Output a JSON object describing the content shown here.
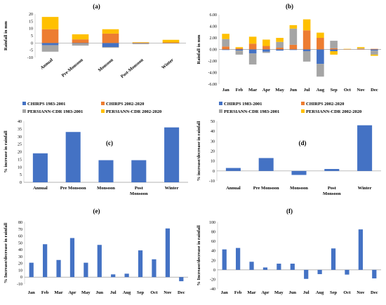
{
  "colors": {
    "chirps_1983": "#4472c4",
    "chirps_2002": "#ed7d31",
    "persiann_1983": "#a5a5a5",
    "persiann_2002": "#ffc000",
    "bar": "#4472c4"
  },
  "legend_labels": [
    "CHIRPS 1983-2001",
    "CHIRPS 2002-2020",
    "PERSIANN-CDR 1983-2001",
    "PERSIANN-CDR 2002-2020"
  ],
  "chart_data": [
    {
      "id": "a",
      "type": "bar",
      "stacked": true,
      "title": "(a)",
      "ylabel": "Rainfall in mm",
      "ylim": [
        -10,
        20
      ],
      "yticks": [
        -10,
        -5,
        0,
        5,
        10,
        15,
        20
      ],
      "categories": [
        "Annual",
        "Pre-Monsoon",
        "Monsoon",
        "Post-Monsoon",
        "Winter"
      ],
      "series": [
        {
          "name": "CHIRPS 1983-2001",
          "values": [
            -1.5,
            -0.3,
            -2.8,
            -0.2,
            -0.1
          ]
        },
        {
          "name": "CHIRPS 2002-2020",
          "values": [
            9.5,
            2.5,
            6.5,
            0.3,
            0.4
          ]
        },
        {
          "name": "PERSIANN-CDR 1983-2001",
          "values": [
            -4.5,
            -1.5,
            -0.5,
            -0.6,
            -0.3
          ]
        },
        {
          "name": "PERSIANN-CDR 2002-2020",
          "values": [
            8.5,
            3.5,
            3.0,
            0.3,
            1.8
          ]
        }
      ]
    },
    {
      "id": "b",
      "type": "bar",
      "stacked": true,
      "title": "(b)",
      "ylabel": "Rainfall in mm",
      "ylim": [
        -6,
        6
      ],
      "yticks": [
        -6,
        -4,
        -2,
        0,
        2,
        4,
        6
      ],
      "ytick_labels": [
        "-6.00",
        "-4.00",
        "-2.00",
        "0.00",
        "2.00",
        "4.00",
        "6.00"
      ],
      "categories": [
        "Jan",
        "Feb",
        "Mar",
        "Apr",
        "May",
        "Jun",
        "Jul",
        "Aug",
        "Sep",
        "Oct",
        "Nov",
        "Dec"
      ],
      "series": [
        {
          "name": "CHIRPS 1983-2001",
          "values": [
            -0.1,
            -0.2,
            -0.7,
            -0.4,
            -0.2,
            -0.1,
            -0.3,
            -2.5,
            -0.3,
            0.0,
            0.0,
            -0.2
          ]
        },
        {
          "name": "CHIRPS 2002-2020",
          "values": [
            0.5,
            0.2,
            1.0,
            0.6,
            0.3,
            0.8,
            3.3,
            2.0,
            0.2,
            0.05,
            0.1,
            0.1
          ]
        },
        {
          "name": "PERSIANN-CDR 1983-2001",
          "values": [
            1.3,
            -0.7,
            -1.9,
            -0.2,
            1.0,
            2.8,
            -1.8,
            -2.2,
            1.3,
            0.0,
            0.1,
            -0.7
          ]
        },
        {
          "name": "PERSIANN-CDR 2002-2020",
          "values": [
            0.9,
            0.2,
            1.2,
            1.1,
            0.7,
            0.6,
            1.9,
            0.9,
            -0.6,
            0.05,
            0.2,
            -0.2
          ]
        }
      ]
    },
    {
      "id": "c",
      "type": "bar",
      "title": "(c)",
      "ylabel": "% increase in rainfall",
      "ylim": [
        0,
        40
      ],
      "yticks": [
        0,
        5,
        10,
        15,
        20,
        25,
        30,
        35,
        40
      ],
      "categories": [
        "Annual",
        "Pre Monsoon",
        "Monsoon",
        "Post Monsoon",
        "Winter"
      ],
      "values": [
        19,
        33,
        14.5,
        14.5,
        36
      ]
    },
    {
      "id": "d",
      "type": "bar",
      "title": "(d)",
      "ylabel": "% increase/decrease in rainfall",
      "ylim": [
        -10,
        50
      ],
      "yticks": [
        -10,
        0,
        10,
        20,
        30,
        40,
        50
      ],
      "categories": [
        "Annual",
        "Pre Monsoon",
        "Monsoon",
        "Post Monsoon",
        "Winter"
      ],
      "values": [
        3,
        13,
        -4,
        2,
        46
      ]
    },
    {
      "id": "e",
      "type": "bar",
      "title": "(e)",
      "ylabel": "% Increase/decrease in rainfall",
      "ylim": [
        -10,
        80
      ],
      "yticks": [
        -10,
        0,
        10,
        20,
        30,
        40,
        50,
        60,
        70,
        80
      ],
      "categories": [
        "Jan",
        "Feb",
        "Mar",
        "Apr",
        "May",
        "Jun",
        "Jul",
        "Aug",
        "Sep",
        "Oct",
        "Nov",
        "Dec"
      ],
      "values": [
        21,
        48,
        25,
        57,
        21,
        47,
        4,
        5,
        39,
        26,
        71,
        -6
      ]
    },
    {
      "id": "f",
      "type": "bar",
      "title": "(f)",
      "ylabel": "% Increase/decrease in rainfall",
      "ylim": [
        -40,
        100
      ],
      "yticks": [
        -40,
        -20,
        0,
        20,
        40,
        60,
        80,
        100
      ],
      "categories": [
        "Jan",
        "Feb",
        "Mar",
        "Apr",
        "May",
        "Jun",
        "Jul",
        "Aug",
        "Sep",
        "Oct",
        "Nov",
        "Dec"
      ],
      "values": [
        43,
        46,
        17,
        5,
        13,
        13,
        -19,
        -9,
        45,
        -10,
        85,
        -18
      ]
    }
  ]
}
